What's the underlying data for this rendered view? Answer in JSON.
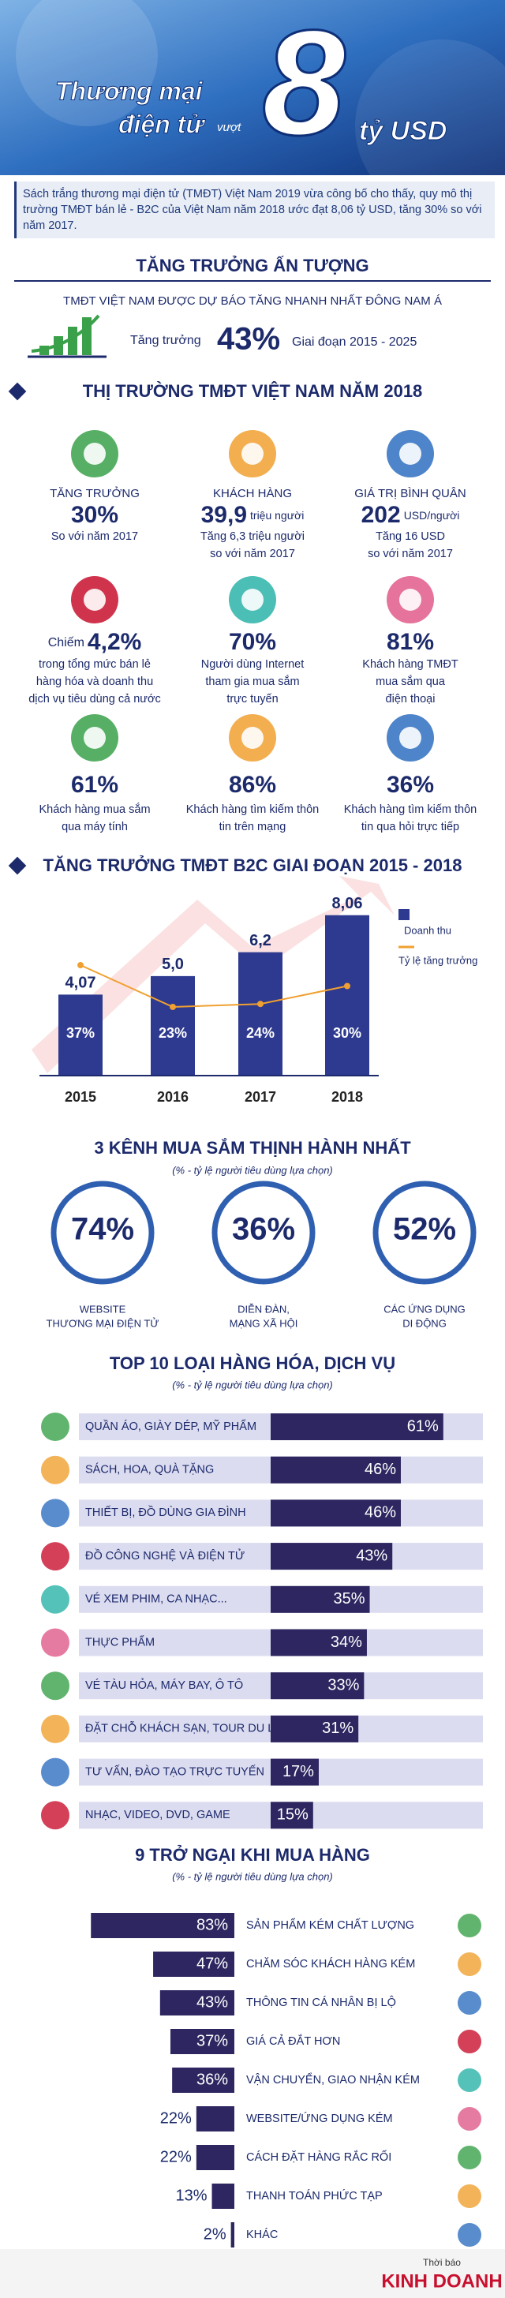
{
  "header": {
    "title_1": "Thương mại",
    "title_2": "điện tử",
    "title_3": "vượt",
    "title_4": "8",
    "title_5": "tỷ USD",
    "intro": "Sách trắng thương mại điện tử (TMĐT) Việt Nam 2019 vừa công bố cho thấy, quy mô thị trường TMĐT bán lẻ - B2C của Việt Nam năm 2018 ước đạt 8,06 tỷ USD, tăng 30% so với năm 2017."
  },
  "growth": {
    "heading": "TĂNG TRƯỞNG ẤN TƯỢNG",
    "subtitle": "TMĐT VIỆT NAM ĐƯỢC DỰ BÁO TĂNG NHANH NHẤT ĐÔNG NAM Á",
    "label": "Tăng trưởng",
    "value": "43%",
    "period": "Giai đoạn 2015 - 2025"
  },
  "market": {
    "heading": "THỊ TRƯỜNG TMĐT VIỆT NAM NĂM 2018",
    "stats": [
      {
        "title": "TĂNG TRƯỞNG",
        "value": "30%",
        "note": [
          "So với năm 2017"
        ]
      },
      {
        "title": "KHÁCH HÀNG",
        "value": "39,9",
        "unit": "triệu người",
        "note": [
          "Tăng 6,3 triệu người",
          "so với năm 2017"
        ]
      },
      {
        "title": "GIÁ TRỊ BÌNH QUÂN",
        "value": "202",
        "unit": "USD/người",
        "note": [
          "Tăng 16 USD",
          "so với năm 2017"
        ]
      },
      {
        "pre": "Chiếm",
        "value": "4,2%",
        "note": [
          "trong tổng mức bán lẻ",
          "hàng hóa và doanh thu",
          "dịch vụ tiêu dùng cả nước"
        ]
      },
      {
        "value": "70%",
        "note": [
          "Người dùng Internet",
          "tham gia mua sắm",
          "trực tuyến"
        ]
      },
      {
        "value": "81%",
        "note": [
          "Khách hàng TMĐT",
          "mua sắm qua",
          "điện thoại"
        ]
      },
      {
        "value": "61%",
        "note": [
          "Khách hàng mua sắm",
          "qua máy tính"
        ]
      },
      {
        "value": "86%",
        "note": [
          "Khách hàng tìm kiếm thôn",
          "tin trên mạng"
        ]
      },
      {
        "value": "36%",
        "note": [
          "Khách hàng tìm kiếm thôn",
          "tin qua hỏi trực tiếp"
        ]
      }
    ]
  },
  "channels": {
    "heading": "3 KÊNH MUA SẮM THỊNH HÀNH NHẤT",
    "subtitle": "(% - tỷ lệ người tiêu dùng lựa chọn)",
    "items": [
      {
        "value": "74%",
        "label": [
          "WEBSITE",
          "THƯƠNG MẠI ĐIỆN TỬ"
        ]
      },
      {
        "value": "36%",
        "label": [
          "DIỄN ĐÀN,",
          "MẠNG XÃ HỘI"
        ]
      },
      {
        "value": "52%",
        "label": [
          "CÁC ỨNG DỤNG",
          "DI ĐỘNG"
        ]
      }
    ]
  },
  "chart_data": [
    {
      "type": "bar",
      "title": "TĂNG TRƯỞNG TMĐT B2C GIAI ĐOẠN 2015 - 2018",
      "categories": [
        "2015",
        "2016",
        "2017",
        "2018"
      ],
      "series": [
        {
          "name": "Doanh thu",
          "color": "#2e3a8f",
          "values": [
            4.07,
            5.0,
            6.2,
            8.06
          ],
          "value_labels": [
            "4,07",
            "5,0",
            "6,2",
            "8,06"
          ]
        },
        {
          "name": "Tỷ lệ tăng trưởng",
          "color": "#f0a030",
          "axis": "y2",
          "values": [
            37,
            23,
            24,
            30
          ],
          "value_labels": [
            "37%",
            "23%",
            "24%",
            "30%"
          ]
        }
      ],
      "ylim": [
        0,
        9
      ],
      "y2lim": [
        0,
        60
      ]
    },
    {
      "type": "hbar",
      "direction": "rightward",
      "title": "TOP 10 LOẠI HÀNG HÓA, DỊCH VỤ",
      "subtitle": "(% - tỷ lệ người tiêu dùng lựa chọn)",
      "categories": [
        "QUẦN ÁO, GIÀY DÉP, MỸ PHẨM",
        "SÁCH, HOA, QUÀ TẶNG",
        "THIẾT BỊ, ĐỒ DÙNG GIA ĐÌNH",
        "ĐỒ CÔNG NGHỆ VÀ ĐIỆN TỬ",
        "VÉ XEM PHIM, CA NHẠC...",
        "THỰC PHẨM",
        "VÉ TÀU HỎA, MÁY BAY, Ô TÔ",
        "ĐẶT CHỖ KHÁCH SẠN, TOUR DU LỊCH",
        "TƯ VẤN, ĐÀO TẠO TRỰC TUYẾN",
        "NHẠC, VIDEO, DVD, GAME"
      ],
      "values": [
        61,
        46,
        46,
        43,
        35,
        34,
        33,
        31,
        17,
        15
      ],
      "value_labels": [
        "61%",
        "46%",
        "46%",
        "43%",
        "35%",
        "34%",
        "33%",
        "31%",
        "17%",
        "15%"
      ],
      "color": "#2d2660",
      "xlim": [
        0,
        75
      ]
    },
    {
      "type": "hbar",
      "direction": "leftward",
      "title": "9 TRỞ NGẠI KHI MUA HÀNG",
      "subtitle": "(% - tỷ lệ người tiêu dùng lựa chọn)",
      "categories": [
        "SẢN PHẨM KÉM CHẤT LƯỢNG",
        "CHĂM SÓC KHÁCH HÀNG KÉM",
        "THÔNG TIN CÁ NHÂN BỊ LỘ",
        "GIÁ CẢ ĐẮT HƠN",
        "VẬN CHUYỂN, GIAO NHẬN KÉM",
        "WEBSITE/ỨNG DỤNG KÉM",
        "CÁCH ĐẶT HÀNG RẮC RỐI",
        "THANH TOÁN PHỨC TẠP",
        "KHÁC"
      ],
      "values": [
        83,
        47,
        43,
        37,
        36,
        22,
        22,
        13,
        2
      ],
      "value_labels": [
        "83%",
        "47%",
        "43%",
        "37%",
        "36%",
        "22%",
        "22%",
        "13%",
        "2%"
      ],
      "color": "#2d2660",
      "xlim": [
        0,
        100
      ]
    }
  ],
  "footer": {
    "brand_small": "Thời báo",
    "brand": "KINH DOANH"
  }
}
